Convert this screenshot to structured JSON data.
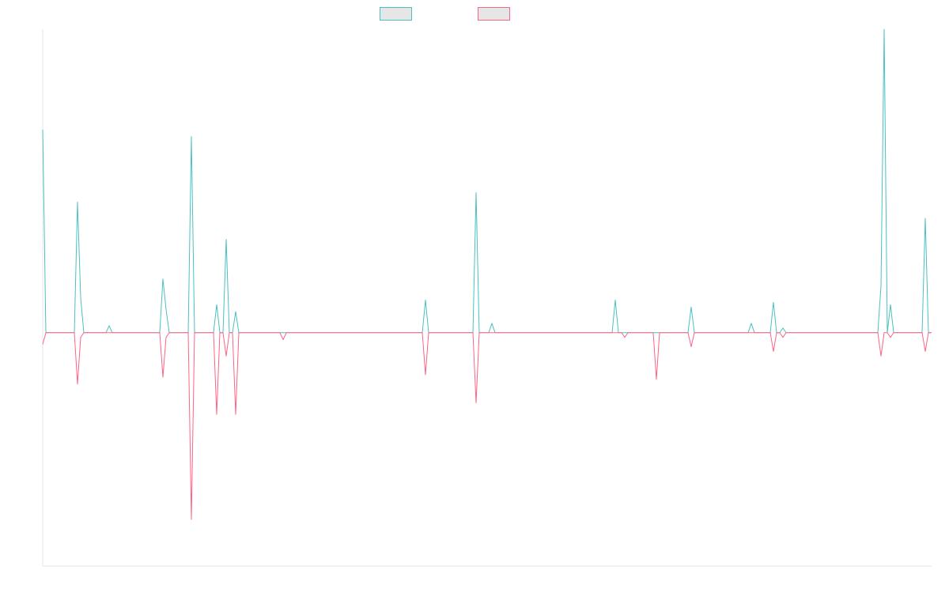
{
  "chart_data": {
    "type": "line",
    "title": "",
    "xlabel": "",
    "ylabel": "",
    "legend_position": "top-center",
    "grid": false,
    "x_count": 282,
    "ylim": [
      -100,
      130
    ],
    "colors": {
      "series_1": "#4bc0c0",
      "series_2": "#ff6384",
      "legend_fill": "#e6e6e6",
      "axis": "#e5e5e5"
    },
    "series": [
      {
        "color": "#4bc0c0",
        "spikes": [
          [
            0,
            87
          ],
          [
            11,
            56
          ],
          [
            12,
            15
          ],
          [
            21,
            3
          ],
          [
            38,
            23
          ],
          [
            39,
            10
          ],
          [
            47,
            84
          ],
          [
            55,
            12
          ],
          [
            58,
            40
          ],
          [
            61,
            9
          ],
          [
            76,
            0
          ],
          [
            121,
            14
          ],
          [
            137,
            60
          ],
          [
            142,
            4
          ],
          [
            181,
            14
          ],
          [
            184,
            0
          ],
          [
            205,
            11
          ],
          [
            224,
            4
          ],
          [
            231,
            13
          ],
          [
            234,
            2
          ],
          [
            265,
            20
          ],
          [
            266,
            130
          ],
          [
            268,
            12
          ],
          [
            279,
            49
          ]
        ]
      },
      {
        "color": "#ff6384",
        "spikes": [
          [
            0,
            -5
          ],
          [
            11,
            -22
          ],
          [
            12,
            -2
          ],
          [
            38,
            -19
          ],
          [
            39,
            -2
          ],
          [
            47,
            -80
          ],
          [
            55,
            -35
          ],
          [
            58,
            -10
          ],
          [
            61,
            -35
          ],
          [
            76,
            -3
          ],
          [
            121,
            -18
          ],
          [
            137,
            -30
          ],
          [
            184,
            -2
          ],
          [
            194,
            -20
          ],
          [
            205,
            -6
          ],
          [
            231,
            -8
          ],
          [
            234,
            -2
          ],
          [
            265,
            -10
          ],
          [
            268,
            -2
          ],
          [
            279,
            -8
          ]
        ]
      }
    ]
  }
}
